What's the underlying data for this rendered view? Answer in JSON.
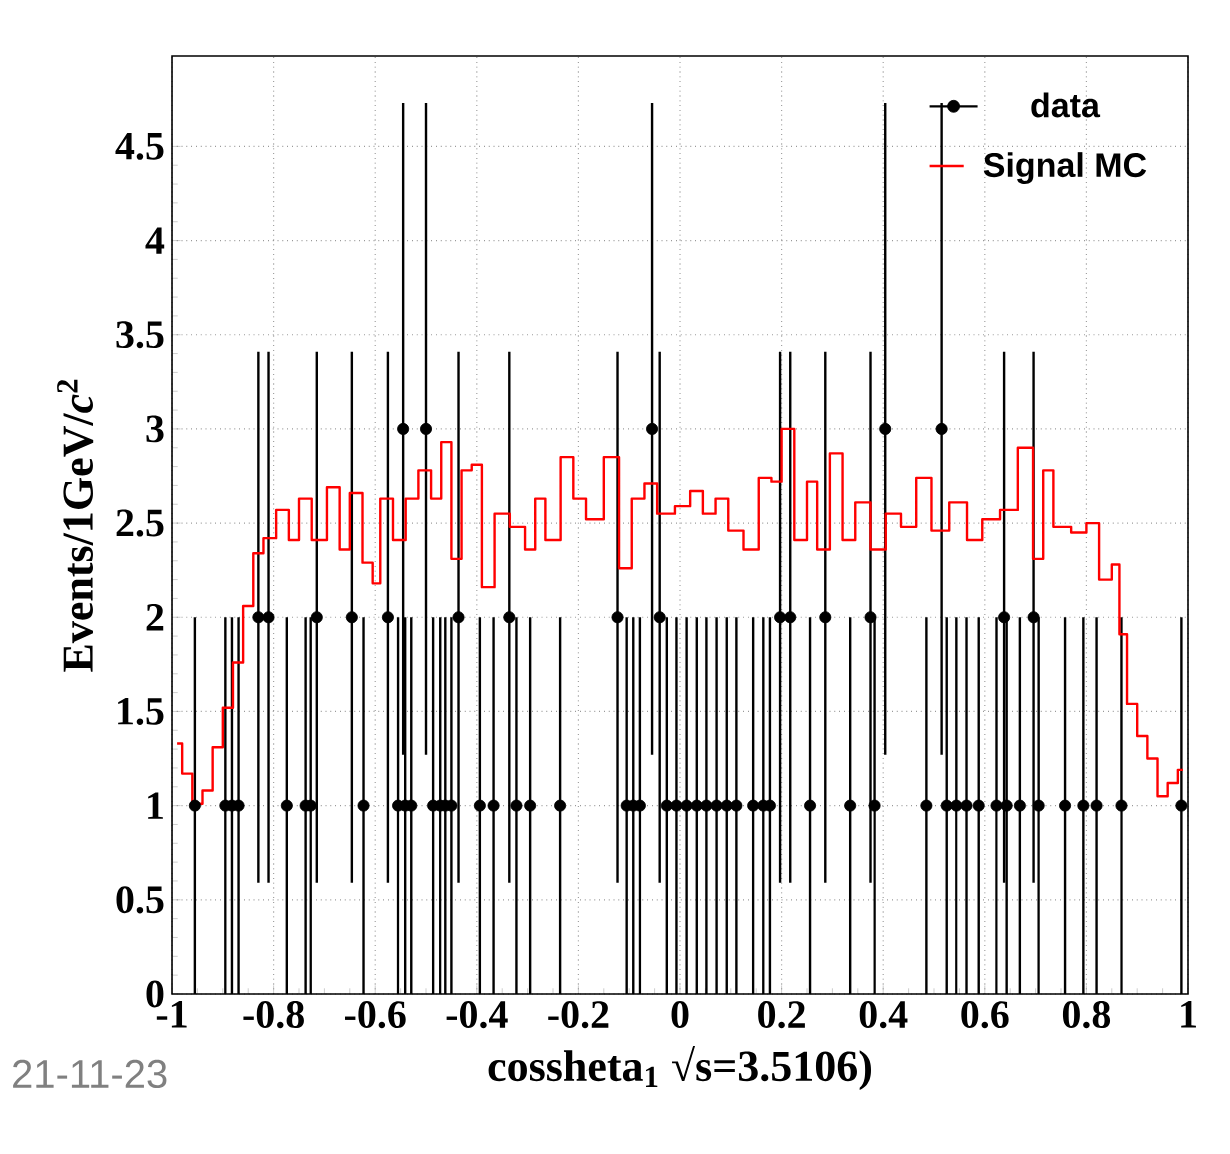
{
  "chart_data": {
    "type": "scatter",
    "xlabel": "cossheta$_{1}$  √s=3.5106)",
    "ylabel": "Events/1GeV/*c*$^{2}$",
    "xlim": [
      -1,
      1
    ],
    "ylim": [
      0,
      4.98
    ],
    "xticks": [
      -1,
      -0.8,
      -0.6,
      -0.4,
      -0.2,
      0,
      0.2,
      0.4,
      0.6,
      0.8,
      1
    ],
    "yticks": [
      0,
      0.5,
      1,
      1.5,
      2,
      2.5,
      3,
      3.5,
      4,
      4.5
    ],
    "grid": true,
    "legend": "top right",
    "annotations": [
      "21-11-23"
    ],
    "series": [
      {
        "name": "data",
        "marker": "circle",
        "color": "#000000",
        "x": [
          -0.955,
          -0.895,
          -0.882,
          -0.869,
          -0.83,
          -0.81,
          -0.774,
          -0.737,
          -0.727,
          -0.715,
          -0.646,
          -0.623,
          -0.575,
          -0.555,
          -0.545,
          -0.541,
          -0.529,
          -0.5,
          -0.486,
          -0.472,
          -0.462,
          -0.45,
          -0.436,
          -0.394,
          -0.367,
          -0.336,
          -0.322,
          -0.295,
          -0.236,
          -0.123,
          -0.105,
          -0.092,
          -0.079,
          -0.055,
          -0.04,
          -0.026,
          -0.007,
          0.013,
          0.033,
          0.052,
          0.072,
          0.092,
          0.111,
          0.144,
          0.164,
          0.177,
          0.197,
          0.217,
          0.256,
          0.286,
          0.335,
          0.375,
          0.383,
          0.404,
          0.485,
          0.515,
          0.525,
          0.544,
          0.564,
          0.588,
          0.623,
          0.638,
          0.643,
          0.669,
          0.696,
          0.706,
          0.758,
          0.794,
          0.82,
          0.869,
          0.987
        ],
        "values": [
          1,
          1,
          1,
          1,
          2,
          2,
          1,
          1,
          1,
          2,
          2,
          1,
          2,
          1,
          3,
          1,
          1,
          3,
          1,
          1,
          1,
          1,
          2,
          1,
          1,
          2,
          1,
          1,
          1,
          2,
          1,
          1,
          1,
          3,
          2,
          1,
          1,
          1,
          1,
          1,
          1,
          1,
          1,
          1,
          1,
          1,
          2,
          2,
          1,
          2,
          1,
          2,
          1,
          3,
          1,
          3,
          1,
          1,
          1,
          1,
          1,
          2,
          1,
          1,
          2,
          1,
          1,
          1,
          1,
          1,
          1
        ],
        "errors": [
          1,
          1,
          1,
          1,
          1.41,
          1.41,
          1,
          1,
          1,
          1.41,
          1.41,
          1,
          1.41,
          1,
          1.73,
          1,
          1,
          1.73,
          1,
          1,
          1,
          1,
          1.41,
          1,
          1,
          1.41,
          1,
          1,
          1,
          1.41,
          1,
          1,
          1,
          1.73,
          1.41,
          1,
          1,
          1,
          1,
          1,
          1,
          1,
          1,
          1,
          1,
          1,
          1.41,
          1.41,
          1,
          1.41,
          1,
          1.41,
          1,
          1.73,
          1,
          1.73,
          1,
          1,
          1,
          1,
          1,
          1.41,
          1,
          1,
          1.41,
          1,
          1,
          1,
          1,
          1,
          1
        ]
      },
      {
        "name": "Signal MC",
        "type": "step",
        "color": "#ff0000",
        "x": [
          -0.99,
          -0.97,
          -0.95,
          -0.93,
          -0.91,
          -0.89,
          -0.87,
          -0.85,
          -0.83,
          -0.81,
          -0.78,
          -0.76,
          -0.74,
          -0.71,
          -0.68,
          -0.66,
          -0.64,
          -0.61,
          -0.6,
          -0.58,
          -0.55,
          -0.53,
          -0.5,
          -0.48,
          -0.46,
          -0.44,
          -0.42,
          -0.4,
          -0.38,
          -0.35,
          -0.32,
          -0.29,
          -0.28,
          -0.25,
          -0.22,
          -0.2,
          -0.17,
          -0.13,
          -0.11,
          -0.08,
          -0.06,
          -0.03,
          0.01,
          0.03,
          0.06,
          0.08,
          0.11,
          0.14,
          0.17,
          0.19,
          0.21,
          0.24,
          0.26,
          0.28,
          0.31,
          0.33,
          0.36,
          0.39,
          0.42,
          0.45,
          0.48,
          0.51,
          0.55,
          0.58,
          0.61,
          0.65,
          0.68,
          0.71,
          0.72,
          0.75,
          0.79,
          0.81,
          0.84,
          0.86,
          0.87,
          0.89,
          0.91,
          0.93,
          0.95,
          0.97,
          0.99
        ],
        "values": [
          1.33,
          1.17,
          1.01,
          1.08,
          1.31,
          1.52,
          1.76,
          2.06,
          2.34,
          2.42,
          2.57,
          2.41,
          2.63,
          2.41,
          2.69,
          2.36,
          2.66,
          2.29,
          2.18,
          2.63,
          2.41,
          2.63,
          2.78,
          2.63,
          2.93,
          2.31,
          2.78,
          2.81,
          2.16,
          2.55,
          2.48,
          2.36,
          2.63,
          2.41,
          2.85,
          2.63,
          2.52,
          2.85,
          2.26,
          2.63,
          2.71,
          2.55,
          2.59,
          2.67,
          2.55,
          2.63,
          2.46,
          2.36,
          2.74,
          2.72,
          3.0,
          2.41,
          2.72,
          2.36,
          2.87,
          2.41,
          2.61,
          2.36,
          2.55,
          2.48,
          2.74,
          2.46,
          2.61,
          2.41,
          2.52,
          2.57,
          2.9,
          2.31,
          2.78,
          2.48,
          2.45,
          2.5,
          2.2,
          2.28,
          1.91,
          1.54,
          1.37,
          1.25,
          1.05,
          1.12,
          1.19
        ]
      }
    ]
  }
}
